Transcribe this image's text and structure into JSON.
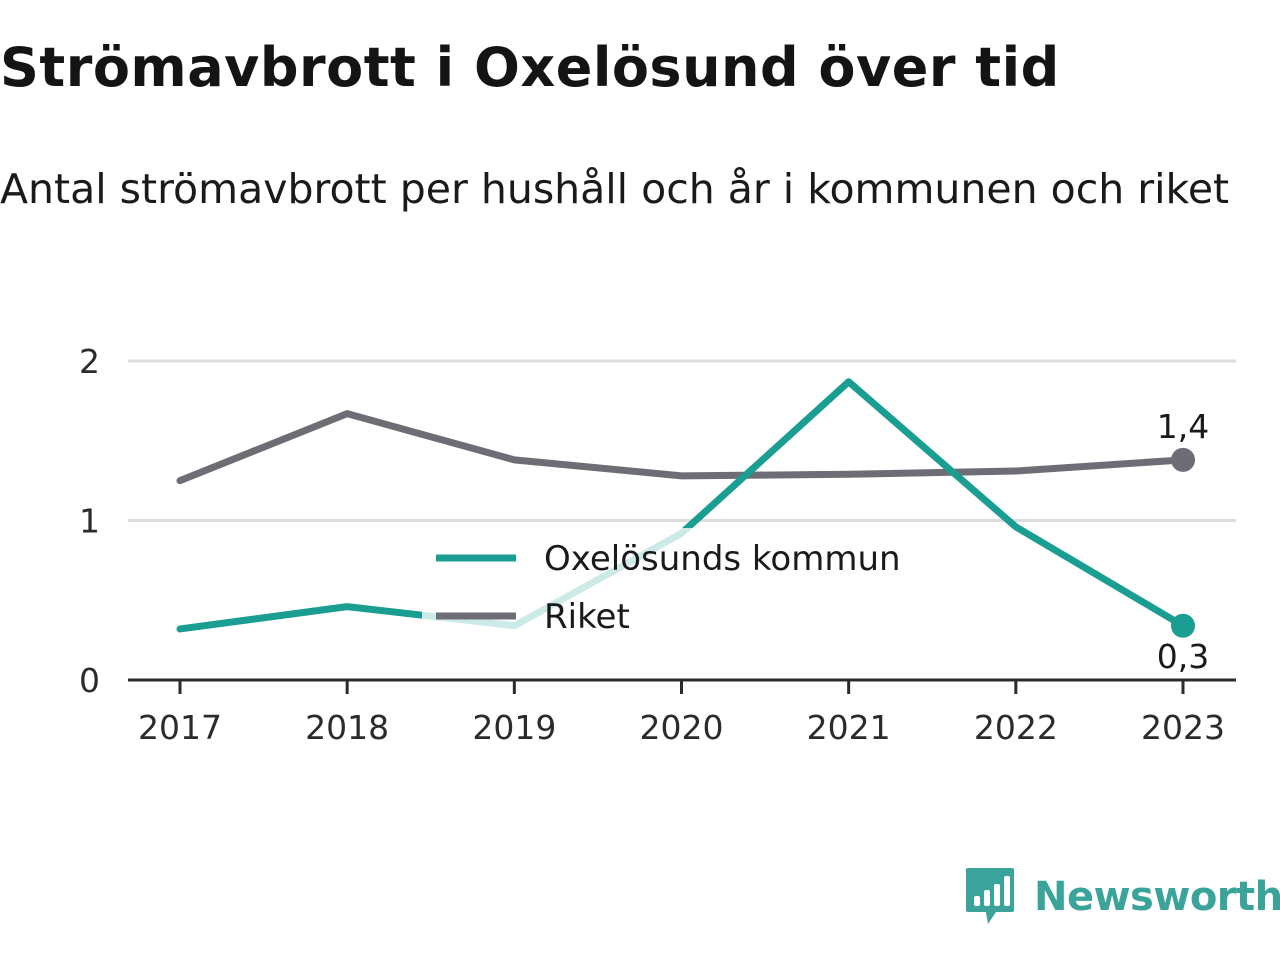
{
  "title": "Strömavbrott i Oxelösund över tid",
  "subtitle": "Antal strömavbrott per hushåll och år i kommunen och riket",
  "brand": {
    "name": "Newsworthy",
    "icon": "newsworthy-logo-icon",
    "color": "#3aa39a"
  },
  "chart_data": {
    "type": "line",
    "title": "Strömavbrott i Oxelösund över tid",
    "subtitle": "Antal strömavbrott per hushåll och år i kommunen och riket",
    "x": [
      "2017",
      "2018",
      "2019",
      "2020",
      "2021",
      "2022",
      "2023"
    ],
    "ylim": [
      0,
      2
    ],
    "yticks": [
      {
        "value": 0,
        "label": "0"
      },
      {
        "value": 1,
        "label": "1"
      },
      {
        "value": 2,
        "label": "2"
      }
    ],
    "grid": true,
    "legend": "center",
    "series": [
      {
        "name": "Oxelösunds kommun",
        "color": "#1a9e92",
        "values": [
          0.32,
          0.46,
          0.34,
          0.92,
          1.87,
          0.96,
          0.34
        ],
        "end_label": "0,3"
      },
      {
        "name": "Riket",
        "color": "#6e6d75",
        "values": [
          1.25,
          1.67,
          1.38,
          1.28,
          1.29,
          1.31,
          1.38
        ],
        "end_label": "1,4"
      }
    ]
  }
}
